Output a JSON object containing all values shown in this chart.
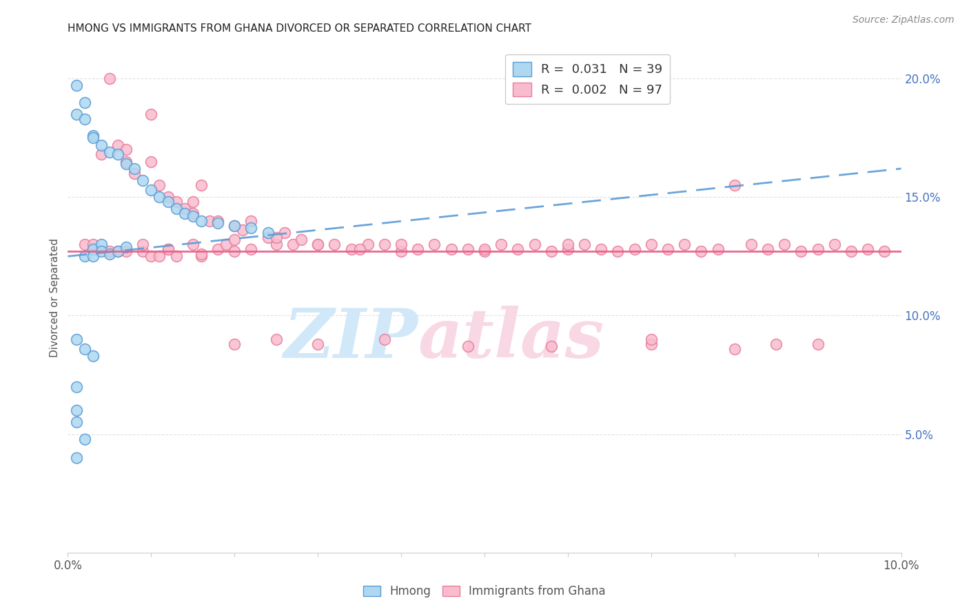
{
  "title": "HMONG VS IMMIGRANTS FROM GHANA DIVORCED OR SEPARATED CORRELATION CHART",
  "source": "Source: ZipAtlas.com",
  "ylabel": "Divorced or Separated",
  "x_min": 0.0,
  "x_max": 0.1,
  "y_min": 0.0,
  "y_max": 0.215,
  "hmong_color": "#add8f0",
  "hmong_edge_color": "#5b9bd5",
  "ghana_color": "#f9bccf",
  "ghana_edge_color": "#e87d9a",
  "hmong_trend_color": "#5b9bd5",
  "ghana_trend_color": "#e8608a",
  "watermark_zip_color": "#d0e8f8",
  "watermark_atlas_color": "#f8d8e4",
  "grid_color": "#e0e0e0",
  "right_tick_color": "#4472c4",
  "title_color": "#222222",
  "source_color": "#888888",
  "ylabel_color": "#555555",
  "tick_color": "#555555",
  "hmong_x": [
    0.001,
    0.001,
    0.001,
    0.001,
    0.001,
    0.002,
    0.002,
    0.002,
    0.002,
    0.003,
    0.003,
    0.003,
    0.003,
    0.003,
    0.004,
    0.004,
    0.004,
    0.005,
    0.005,
    0.006,
    0.006,
    0.007,
    0.007,
    0.008,
    0.009,
    0.01,
    0.011,
    0.012,
    0.013,
    0.014,
    0.015,
    0.016,
    0.018,
    0.02,
    0.022,
    0.024,
    0.001,
    0.002,
    0.001
  ],
  "hmong_y": [
    0.197,
    0.185,
    0.06,
    0.055,
    0.04,
    0.19,
    0.183,
    0.125,
    0.048,
    0.176,
    0.175,
    0.128,
    0.125,
    0.083,
    0.172,
    0.13,
    0.127,
    0.169,
    0.126,
    0.168,
    0.127,
    0.164,
    0.129,
    0.162,
    0.157,
    0.153,
    0.15,
    0.148,
    0.145,
    0.143,
    0.142,
    0.14,
    0.139,
    0.138,
    0.137,
    0.135,
    0.09,
    0.086,
    0.07
  ],
  "ghana_x": [
    0.002,
    0.003,
    0.004,
    0.005,
    0.005,
    0.006,
    0.007,
    0.007,
    0.008,
    0.009,
    0.01,
    0.01,
    0.011,
    0.011,
    0.012,
    0.012,
    0.013,
    0.013,
    0.014,
    0.015,
    0.015,
    0.016,
    0.016,
    0.017,
    0.018,
    0.018,
    0.019,
    0.02,
    0.02,
    0.021,
    0.022,
    0.022,
    0.024,
    0.025,
    0.026,
    0.027,
    0.028,
    0.03,
    0.032,
    0.034,
    0.036,
    0.038,
    0.04,
    0.042,
    0.044,
    0.046,
    0.048,
    0.05,
    0.052,
    0.054,
    0.056,
    0.058,
    0.06,
    0.062,
    0.064,
    0.066,
    0.068,
    0.07,
    0.072,
    0.074,
    0.076,
    0.078,
    0.08,
    0.082,
    0.084,
    0.086,
    0.088,
    0.09,
    0.092,
    0.094,
    0.096,
    0.098,
    0.007,
    0.01,
    0.015,
    0.02,
    0.025,
    0.03,
    0.035,
    0.04,
    0.05,
    0.06,
    0.07,
    0.08,
    0.09,
    0.003,
    0.006,
    0.009,
    0.012,
    0.016,
    0.02,
    0.025,
    0.03,
    0.038,
    0.048,
    0.058,
    0.07,
    0.085
  ],
  "ghana_y": [
    0.13,
    0.128,
    0.168,
    0.2,
    0.127,
    0.172,
    0.165,
    0.127,
    0.16,
    0.127,
    0.185,
    0.125,
    0.155,
    0.125,
    0.15,
    0.128,
    0.148,
    0.125,
    0.145,
    0.143,
    0.13,
    0.155,
    0.125,
    0.14,
    0.14,
    0.128,
    0.13,
    0.138,
    0.127,
    0.136,
    0.14,
    0.128,
    0.133,
    0.13,
    0.135,
    0.13,
    0.132,
    0.13,
    0.13,
    0.128,
    0.13,
    0.13,
    0.127,
    0.128,
    0.13,
    0.128,
    0.128,
    0.127,
    0.13,
    0.128,
    0.13,
    0.127,
    0.128,
    0.13,
    0.128,
    0.127,
    0.128,
    0.13,
    0.128,
    0.13,
    0.127,
    0.128,
    0.155,
    0.13,
    0.128,
    0.13,
    0.127,
    0.128,
    0.13,
    0.127,
    0.128,
    0.127,
    0.17,
    0.165,
    0.148,
    0.132,
    0.133,
    0.13,
    0.128,
    0.13,
    0.128,
    0.13,
    0.088,
    0.086,
    0.088,
    0.13,
    0.127,
    0.13,
    0.128,
    0.126,
    0.088,
    0.09,
    0.088,
    0.09,
    0.087,
    0.087,
    0.09,
    0.088
  ]
}
